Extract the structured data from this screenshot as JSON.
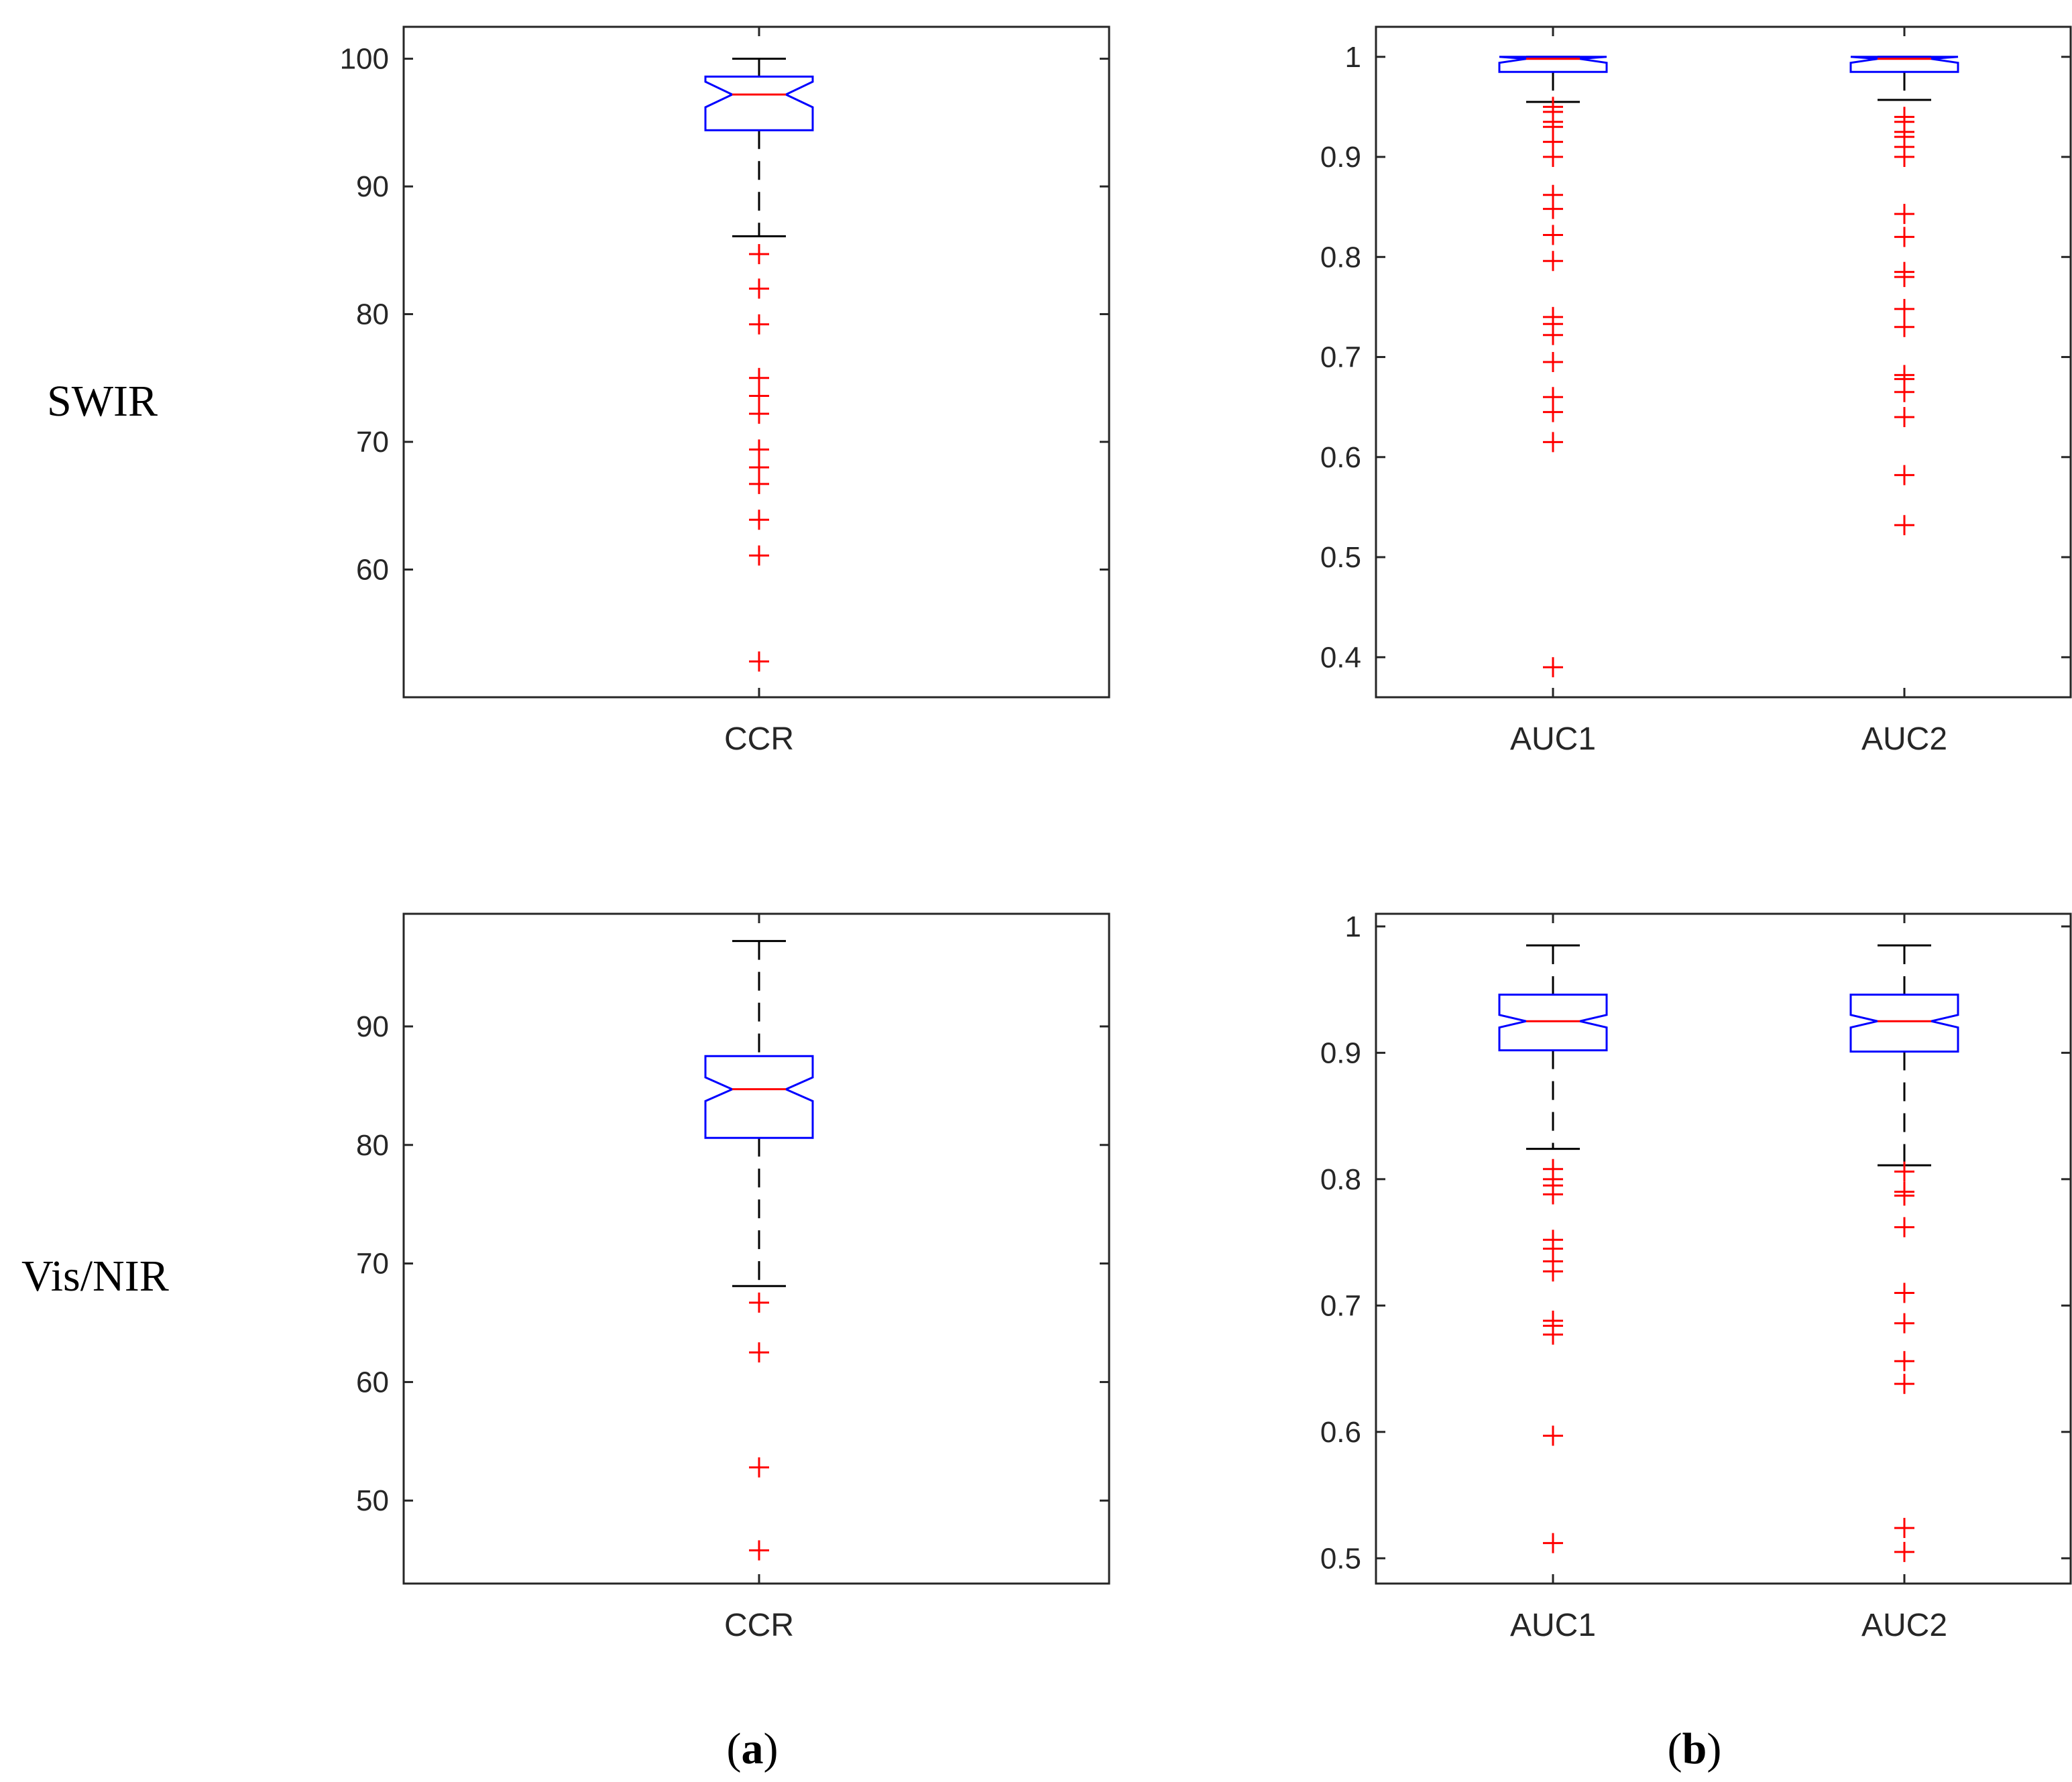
{
  "row_labels": {
    "top": "SWIR",
    "bottom": "Vis/NIR"
  },
  "panel_labels": {
    "a": {
      "open": "(",
      "letter": "a",
      "close": ")"
    },
    "b": {
      "open": "(",
      "letter": "b",
      "close": ")"
    }
  },
  "colors": {
    "box": "#0000ff",
    "median": "#ff0000",
    "outlier": "#ff0000",
    "whisker": "#000000",
    "axis": "#262626"
  },
  "chart_data": [
    {
      "id": "swir-ccr",
      "type": "boxplot",
      "row": "SWIR",
      "panel": "a",
      "ylim": [
        50,
        102.5
      ],
      "yticks": [
        60,
        70,
        80,
        90,
        100
      ],
      "categories": [
        "CCR"
      ],
      "boxes": [
        {
          "label": "CCR",
          "whisker_low": 86.1,
          "q1": 94.4,
          "median": 97.2,
          "q3": 98.6,
          "whisker_high": 100,
          "notch_low": 96.2,
          "notch_high": 98.2,
          "outliers": [
            84.7,
            82.0,
            79.2,
            75.0,
            73.6,
            72.2,
            69.4,
            68.0,
            66.7,
            63.9,
            61.1,
            52.8
          ]
        }
      ]
    },
    {
      "id": "swir-auc",
      "type": "boxplot",
      "row": "SWIR",
      "panel": "b",
      "ylim": [
        0.36,
        1.03
      ],
      "yticks": [
        0.4,
        0.5,
        0.6,
        0.7,
        0.8,
        0.9,
        1
      ],
      "categories": [
        "AUC1",
        "AUC2"
      ],
      "boxes": [
        {
          "label": "AUC1",
          "whisker_low": 0.955,
          "q1": 0.985,
          "median": 0.998,
          "q3": 1.0,
          "whisker_high": 1.0,
          "notch_low": 0.994,
          "notch_high": 1.0,
          "outliers": [
            0.95,
            0.945,
            0.935,
            0.93,
            0.915,
            0.9,
            0.862,
            0.848,
            0.822,
            0.796,
            0.74,
            0.733,
            0.722,
            0.695,
            0.66,
            0.645,
            0.615,
            0.39
          ]
        },
        {
          "label": "AUC2",
          "whisker_low": 0.957,
          "q1": 0.985,
          "median": 0.998,
          "q3": 1.0,
          "whisker_high": 1.0,
          "notch_low": 0.994,
          "notch_high": 1.0,
          "outliers": [
            0.94,
            0.935,
            0.925,
            0.92,
            0.91,
            0.9,
            0.843,
            0.82,
            0.785,
            0.78,
            0.748,
            0.73,
            0.682,
            0.678,
            0.665,
            0.64,
            0.582,
            0.532
          ]
        }
      ]
    },
    {
      "id": "visnir-ccr",
      "type": "boxplot",
      "row": "Vis/NIR",
      "panel": "a",
      "ylim": [
        43,
        99.5
      ],
      "yticks": [
        50,
        60,
        70,
        80,
        90
      ],
      "categories": [
        "CCR"
      ],
      "boxes": [
        {
          "label": "CCR",
          "whisker_low": 68.1,
          "q1": 80.6,
          "median": 84.7,
          "q3": 87.5,
          "whisker_high": 97.2,
          "notch_low": 83.7,
          "notch_high": 85.7,
          "outliers": [
            66.7,
            62.5,
            52.8,
            45.8
          ]
        }
      ]
    },
    {
      "id": "visnir-auc",
      "type": "boxplot",
      "row": "Vis/NIR",
      "panel": "b",
      "ylim": [
        0.48,
        1.01
      ],
      "yticks": [
        0.5,
        0.6,
        0.7,
        0.8,
        0.9,
        1
      ],
      "categories": [
        "AUC1",
        "AUC2"
      ],
      "boxes": [
        {
          "label": "AUC1",
          "whisker_low": 0.824,
          "q1": 0.902,
          "median": 0.925,
          "q3": 0.946,
          "whisker_high": 0.985,
          "notch_low": 0.92,
          "notch_high": 0.93,
          "outliers": [
            0.808,
            0.8,
            0.795,
            0.788,
            0.752,
            0.745,
            0.735,
            0.727,
            0.688,
            0.684,
            0.677,
            0.597,
            0.512
          ]
        },
        {
          "label": "AUC2",
          "whisker_low": 0.811,
          "q1": 0.901,
          "median": 0.925,
          "q3": 0.946,
          "whisker_high": 0.985,
          "notch_low": 0.92,
          "notch_high": 0.93,
          "outliers": [
            0.806,
            0.79,
            0.787,
            0.762,
            0.71,
            0.686,
            0.656,
            0.638,
            0.524,
            0.505
          ]
        }
      ]
    }
  ]
}
